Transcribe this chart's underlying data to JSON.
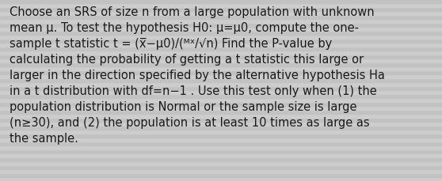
{
  "background_color": "#c8c8c8",
  "stripe_color_light": "#d4d4d4",
  "stripe_color_dark": "#b8b8b8",
  "text_color": "#1a1a1a",
  "font_size": 10.5,
  "line1": "Choose an SRS of size n from a large population with unknown",
  "line2": "mean μ. To test the hypothesis H0: μ=μ0, compute the one-",
  "line3": "sample t statistic t = (x̅−μ0)/(ᴹˣ/√n) Find the P-value by",
  "line3_alt": "sample t statistic t = (x̅−μ0)/(Sx/√n) Find the P-value by",
  "line4": "calculating the probability of getting a t statistic this large or",
  "line5": "larger in the direction specified by the alternative hypothesis Ha",
  "line6": "in a t distribution with df=n−1 . Use this test only when (1) the",
  "line7": "population distribution is Normal or the sample size is large",
  "line8": "(n≥30), and (2) the population is at least 10 times as large as",
  "line9": "the sample.",
  "figwidth": 5.58,
  "figheight": 2.3,
  "dpi": 100
}
